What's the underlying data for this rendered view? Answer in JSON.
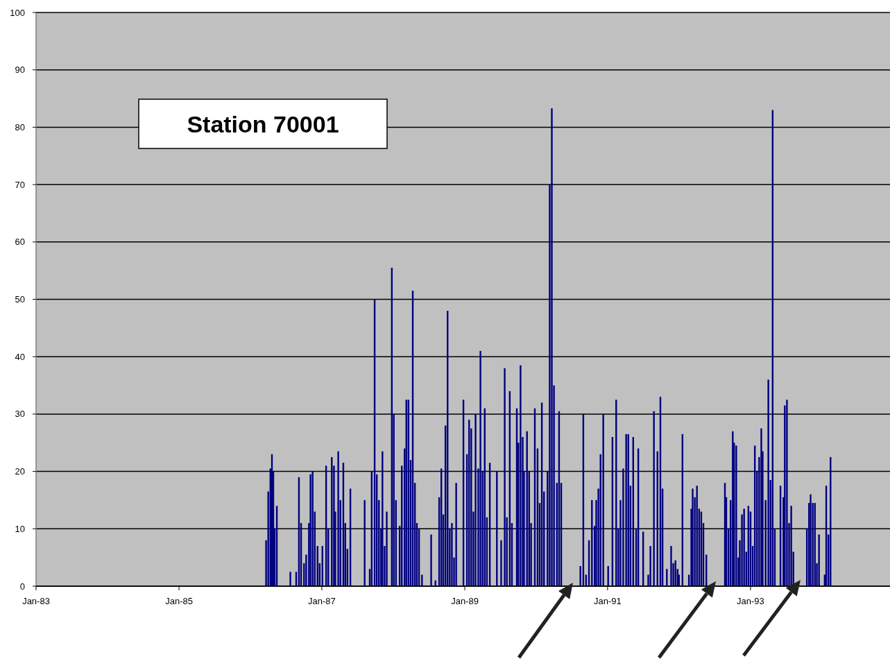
{
  "chart_data": {
    "type": "bar",
    "title": "Station 70001",
    "color": "#000080",
    "x": [
      "1986-03-22",
      "1986-04-02",
      "1986-04-13",
      "1986-04-21",
      "1986-04-28",
      "1986-05-05",
      "1986-05-16",
      "1986-07-24",
      "1986-08-23",
      "1986-09-06",
      "1986-09-17",
      "1986-10-02",
      "1986-10-13",
      "1986-10-27",
      "1986-11-04",
      "1986-11-15",
      "1986-11-26",
      "1986-12-10",
      "1986-12-21",
      "1987-01-04",
      "1987-01-23",
      "1987-02-03",
      "1987-02-21",
      "1987-03-04",
      "1987-03-11",
      "1987-03-26",
      "1987-04-06",
      "1987-04-21",
      "1987-05-01",
      "1987-05-12",
      "1987-05-27",
      "1987-08-08",
      "1987-09-03",
      "1987-09-13",
      "1987-09-28",
      "1987-10-09",
      "1987-10-20",
      "1987-10-31",
      "1987-11-07",
      "1987-11-18",
      "1987-11-29",
      "1987-12-25",
      "1988-01-04",
      "1988-01-15",
      "1988-02-03",
      "1988-02-14",
      "1988-02-28",
      "1988-03-08",
      "1988-03-19",
      "1988-03-30",
      "1988-04-10",
      "1988-04-21",
      "1988-05-01",
      "1988-05-12",
      "1988-05-27",
      "1988-07-13",
      "1988-08-04",
      "1988-08-23",
      "1988-09-03",
      "1988-09-13",
      "1988-09-24",
      "1988-10-05",
      "1988-10-16",
      "1988-10-27",
      "1988-11-07",
      "1988-11-18",
      "1988-12-25",
      "1989-01-12",
      "1989-01-23",
      "1989-02-03",
      "1989-02-14",
      "1989-02-25",
      "1989-03-11",
      "1989-03-22",
      "1989-04-02",
      "1989-04-13",
      "1989-04-24",
      "1989-05-09",
      "1989-06-14",
      "1989-07-06",
      "1989-07-24",
      "1989-08-04",
      "1989-08-19",
      "1989-08-30",
      "1989-09-24",
      "1989-10-02",
      "1989-10-13",
      "1989-10-24",
      "1989-10-31",
      "1989-11-15",
      "1989-11-26",
      "1989-12-06",
      "1989-12-25",
      "1990-01-08",
      "1990-01-19",
      "1990-01-30",
      "1990-02-10",
      "1990-02-28",
      "1990-03-11",
      "1990-03-22",
      "1990-04-02",
      "1990-04-17",
      "1990-04-28",
      "1990-05-09",
      "1990-08-15",
      "1990-08-30",
      "1990-09-13",
      "1990-09-28",
      "1990-10-13",
      "1990-10-27",
      "1990-11-04",
      "1990-11-15",
      "1990-11-26",
      "1990-12-10",
      "1991-01-04",
      "1991-01-26",
      "1991-02-14",
      "1991-02-25",
      "1991-03-08",
      "1991-03-22",
      "1991-04-06",
      "1991-04-17",
      "1991-04-28",
      "1991-05-12",
      "1991-05-27",
      "1991-06-07",
      "1991-07-02",
      "1991-07-28",
      "1991-08-08",
      "1991-08-26",
      "1991-09-13",
      "1991-09-28",
      "1991-10-09",
      "1991-10-31",
      "1991-11-22",
      "1991-12-03",
      "1991-12-14",
      "1991-12-25",
      "1992-01-01",
      "1992-01-19",
      "1992-02-21",
      "1992-03-04",
      "1992-03-11",
      "1992-03-22",
      "1992-04-02",
      "1992-04-13",
      "1992-04-24",
      "1992-05-05",
      "1992-05-20",
      "1992-08-23",
      "1992-08-30",
      "1992-09-10",
      "1992-09-21",
      "1992-10-02",
      "1992-10-09",
      "1992-10-20",
      "1992-10-31",
      "1992-11-07",
      "1992-11-18",
      "1992-11-29",
      "1992-12-10",
      "1992-12-21",
      "1993-01-01",
      "1993-01-12",
      "1993-01-23",
      "1993-02-03",
      "1993-02-14",
      "1993-02-25",
      "1993-03-04",
      "1993-03-19",
      "1993-04-02",
      "1993-04-13",
      "1993-04-24",
      "1993-05-05",
      "1993-06-03",
      "1993-06-18",
      "1993-06-25",
      "1993-07-06",
      "1993-07-17",
      "1993-07-28",
      "1993-08-08",
      "1993-10-16",
      "1993-10-27",
      "1993-11-04",
      "1993-11-15",
      "1993-11-26",
      "1993-12-06",
      "1993-12-17",
      "1994-01-15",
      "1994-01-23",
      "1994-02-03",
      "1994-02-14"
    ],
    "values": [
      8,
      16.5,
      20.5,
      23,
      20,
      10,
      14,
      2.5,
      2.5,
      19,
      11,
      4,
      5.5,
      11,
      19.5,
      20,
      13,
      7,
      4,
      7,
      21,
      10,
      22.5,
      21,
      13,
      23.5,
      15,
      21.5,
      11,
      6.5,
      17,
      15,
      3,
      20,
      50,
      19.5,
      15,
      10,
      23.5,
      7,
      13,
      55.5,
      30,
      15,
      10.5,
      21,
      24,
      32.5,
      32.5,
      22,
      51.5,
      18,
      11,
      10,
      2,
      9,
      1,
      15.5,
      20.5,
      12.5,
      28,
      48,
      10,
      11,
      5,
      18,
      32.5,
      23,
      29,
      27.5,
      13,
      30,
      20.5,
      41,
      20,
      31,
      12,
      21.5,
      20,
      8,
      38,
      12,
      34,
      11,
      31,
      25,
      38.5,
      26,
      20,
      27,
      20,
      11,
      31,
      24,
      14.5,
      32,
      16.5,
      20,
      70,
      83.3,
      35,
      18,
      30.5,
      18,
      3.5,
      30,
      2,
      8,
      15,
      10.5,
      15,
      17,
      23,
      30,
      3.5,
      26,
      32.5,
      10,
      15,
      20.5,
      26.5,
      26.5,
      17.5,
      26,
      10,
      24,
      9.5,
      2,
      7,
      30.5,
      23.5,
      33,
      17,
      3,
      7,
      4,
      4.5,
      3,
      2,
      26.5,
      2,
      13.5,
      17,
      15.5,
      17.5,
      13.5,
      13,
      11,
      5.5,
      18,
      15.5,
      10,
      15,
      27,
      25,
      24.5,
      5,
      8,
      12.5,
      13.5,
      6,
      14,
      13,
      7,
      24.5,
      20,
      22.5,
      27.5,
      23.5,
      15,
      36,
      18.5,
      83,
      10,
      17.5,
      15.5,
      31.5,
      32.5,
      11,
      14,
      6,
      10,
      14.5,
      16,
      14.5,
      14.5,
      4,
      9,
      2,
      17.5,
      9,
      22.5
    ],
    "xlim": [
      "1983-01-01",
      "1994-12-15"
    ],
    "xticks": [
      {
        "value": "1983-01-01",
        "label": "Jan-83"
      },
      {
        "value": "1985-01-01",
        "label": "Jan-85"
      },
      {
        "value": "1987-01-01",
        "label": "Jan-87"
      },
      {
        "value": "1989-01-01",
        "label": "Jan-89"
      },
      {
        "value": "1991-01-01",
        "label": "Jan-91"
      },
      {
        "value": "1993-01-01",
        "label": "Jan-93"
      }
    ],
    "ylim": [
      0,
      100
    ],
    "yticks": [
      0,
      10,
      20,
      30,
      40,
      50,
      60,
      70,
      80,
      90,
      100
    ],
    "grid": "y"
  }
}
